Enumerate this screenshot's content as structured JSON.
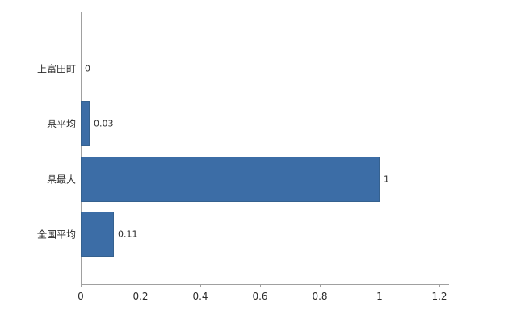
{
  "chart_data": {
    "type": "bar",
    "orientation": "horizontal",
    "title": "",
    "xlabel": "",
    "ylabel": "",
    "categories": [
      "上富田町",
      "県平均",
      "県最大",
      "全国平均"
    ],
    "values": [
      0,
      0.03,
      1,
      0.11
    ],
    "value_labels": [
      "0",
      "0.03",
      "1",
      "0.11"
    ],
    "x_tick_values": [
      0,
      0.2,
      0.4,
      0.6,
      0.8,
      1,
      1.2
    ],
    "x_tick_labels": [
      "0",
      "0.2",
      "0.4",
      "0.6",
      "0.8",
      "1",
      "1.2"
    ],
    "xlim": [
      0,
      1.2
    ],
    "grid": false,
    "legend": "none",
    "bar_color": "#3c6da6",
    "axis_color": "#a0a0a0",
    "text_color": "#2b2b2b"
  }
}
